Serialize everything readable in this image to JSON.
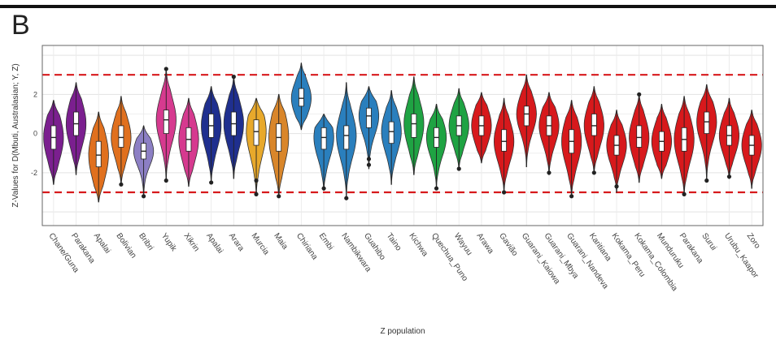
{
  "panel_label": "B",
  "chart_data": {
    "type": "violin",
    "xlabel": "Z population",
    "ylabel": "Z-Values for D(Mbuti, Australasian; Y, Z)",
    "ylim": [
      -4.7,
      4.5
    ],
    "yticks": [
      -2,
      0,
      2
    ],
    "threshold_lines": [
      3,
      -3
    ],
    "threshold_color": "#d7191c",
    "grid": true,
    "series": [
      {
        "category": "Chane/Guna",
        "color": "#7b1f8f",
        "min": -2.6,
        "max": 1.7,
        "q1": -0.8,
        "median": -0.2,
        "q3": 0.4,
        "outliers": []
      },
      {
        "category": "Parakana",
        "color": "#7b1f8f",
        "min": -2.1,
        "max": 2.6,
        "q1": -0.1,
        "median": 0.5,
        "q3": 1.1,
        "outliers": []
      },
      {
        "category": "Apalai",
        "color": "#e0701e",
        "min": -3.5,
        "max": 1.1,
        "q1": -1.7,
        "median": -1.1,
        "q3": -0.4,
        "outliers": []
      },
      {
        "category": "Bolivian",
        "color": "#e0701e",
        "min": -2.6,
        "max": 1.9,
        "q1": -0.7,
        "median": -0.2,
        "q3": 0.4,
        "outliers": [
          -2.6
        ]
      },
      {
        "category": "Bribri",
        "color": "#8c7fc4",
        "min": -3.2,
        "max": 0.4,
        "q1": -1.3,
        "median": -0.9,
        "q3": -0.5,
        "outliers": [
          -3.2
        ]
      },
      {
        "category": "Yupik",
        "color": "#d63a8f",
        "min": -2.4,
        "max": 3.3,
        "q1": 0.0,
        "median": 0.7,
        "q3": 1.2,
        "outliers": [
          3.3,
          -2.4
        ]
      },
      {
        "category": "Xikrin",
        "color": "#d63a8f",
        "min": -2.7,
        "max": 1.8,
        "q1": -0.9,
        "median": -0.3,
        "q3": 0.3,
        "outliers": []
      },
      {
        "category": "Apalai",
        "color": "#1f2f8f",
        "min": -2.5,
        "max": 2.4,
        "q1": -0.2,
        "median": 0.4,
        "q3": 1.0,
        "outliers": [
          -2.5
        ]
      },
      {
        "category": "Arara",
        "color": "#1f2f8f",
        "min": -2.3,
        "max": 2.9,
        "q1": -0.1,
        "median": 0.5,
        "q3": 1.1,
        "outliers": [
          2.9
        ]
      },
      {
        "category": "Murcia",
        "color": "#e8a92b",
        "min": -3.1,
        "max": 1.8,
        "q1": -0.6,
        "median": 0.1,
        "q3": 0.7,
        "outliers": [
          -3.1,
          -2.4
        ]
      },
      {
        "category": "Maia",
        "color": "#d9862a",
        "min": -3.2,
        "max": 2.0,
        "q1": -0.9,
        "median": -0.2,
        "q3": 0.5,
        "outliers": [
          -3.2
        ]
      },
      {
        "category": "Chiriana",
        "color": "#2a7fbd",
        "min": 0.2,
        "max": 3.6,
        "q1": 1.4,
        "median": 1.8,
        "q3": 2.3,
        "outliers": []
      },
      {
        "category": "Embi",
        "color": "#2a7fbd",
        "min": -2.9,
        "max": 1.0,
        "q1": -0.8,
        "median": -0.2,
        "q3": 0.3,
        "outliers": [
          -2.8
        ]
      },
      {
        "category": "Nambikwara",
        "color": "#2a7fbd",
        "min": -3.3,
        "max": 2.6,
        "q1": -0.8,
        "median": -0.1,
        "q3": 0.4,
        "outliers": [
          -3.3
        ]
      },
      {
        "category": "Guahibo",
        "color": "#2a7fbd",
        "min": -1.8,
        "max": 2.4,
        "q1": 0.3,
        "median": 0.9,
        "q3": 1.3,
        "outliers": [
          -1.3,
          -1.6
        ]
      },
      {
        "category": "Taino",
        "color": "#2a7fbd",
        "min": -2.6,
        "max": 2.2,
        "q1": -0.5,
        "median": 0.1,
        "q3": 0.6,
        "outliers": []
      },
      {
        "category": "Kichwa",
        "color": "#1fa343",
        "min": -2.1,
        "max": 2.9,
        "q1": -0.2,
        "median": 0.5,
        "q3": 1.0,
        "outliers": []
      },
      {
        "category": "Quechua_Puno",
        "color": "#1fa343",
        "min": -2.8,
        "max": 1.5,
        "q1": -0.7,
        "median": -0.2,
        "q3": 0.3,
        "outliers": [
          -2.8
        ]
      },
      {
        "category": "Wayuu",
        "color": "#1fa343",
        "min": -1.8,
        "max": 2.3,
        "q1": -0.1,
        "median": 0.4,
        "q3": 0.9,
        "outliers": [
          -1.8
        ]
      },
      {
        "category": "Arawa",
        "color": "#d7191c",
        "min": -1.5,
        "max": 2.1,
        "q1": -0.1,
        "median": 0.4,
        "q3": 0.9,
        "outliers": []
      },
      {
        "category": "Gavião",
        "color": "#d7191c",
        "min": -3.0,
        "max": 1.8,
        "q1": -0.9,
        "median": -0.4,
        "q3": 0.2,
        "outliers": [
          -3.0
        ]
      },
      {
        "category": "Guarani_Kaiowa",
        "color": "#d7191c",
        "min": -1.7,
        "max": 3.0,
        "q1": 0.4,
        "median": 1.0,
        "q3": 1.4,
        "outliers": []
      },
      {
        "category": "Guarani_Mbya",
        "color": "#d7191c",
        "min": -2.1,
        "max": 2.1,
        "q1": -0.1,
        "median": 0.4,
        "q3": 0.9,
        "outliers": [
          -2.0
        ]
      },
      {
        "category": "Guarani_Nandeva",
        "color": "#d7191c",
        "min": -3.2,
        "max": 1.7,
        "q1": -1.0,
        "median": -0.4,
        "q3": 0.2,
        "outliers": [
          -3.2
        ]
      },
      {
        "category": "Karitiana",
        "color": "#d7191c",
        "min": -2.0,
        "max": 2.4,
        "q1": -0.1,
        "median": 0.4,
        "q3": 1.0,
        "outliers": [
          -2.0
        ]
      },
      {
        "category": "Kokama_Peru",
        "color": "#d7191c",
        "min": -3.0,
        "max": 1.2,
        "q1": -1.1,
        "median": -0.6,
        "q3": -0.1,
        "outliers": [
          -2.7
        ]
      },
      {
        "category": "Kokama_Colombia",
        "color": "#d7191c",
        "min": -2.5,
        "max": 2.0,
        "q1": -0.7,
        "median": -0.2,
        "q3": 0.4,
        "outliers": [
          2.0
        ]
      },
      {
        "category": "Munduruku",
        "color": "#d7191c",
        "min": -2.3,
        "max": 1.5,
        "q1": -0.9,
        "median": -0.4,
        "q3": 0.1,
        "outliers": []
      },
      {
        "category": "Parakana",
        "color": "#d7191c",
        "min": -3.1,
        "max": 1.9,
        "q1": -0.9,
        "median": -0.3,
        "q3": 0.3,
        "outliers": [
          -3.1
        ]
      },
      {
        "category": "Surui",
        "color": "#d7191c",
        "min": -2.4,
        "max": 2.5,
        "q1": 0.0,
        "median": 0.6,
        "q3": 1.1,
        "outliers": [
          -2.4
        ]
      },
      {
        "category": "Urubu_Kaapor",
        "color": "#d7191c",
        "min": -2.3,
        "max": 1.8,
        "q1": -0.6,
        "median": -0.1,
        "q3": 0.4,
        "outliers": [
          -2.2
        ]
      },
      {
        "category": "Zoro",
        "color": "#d7191c",
        "min": -2.8,
        "max": 1.2,
        "q1": -1.1,
        "median": -0.6,
        "q3": -0.1,
        "outliers": []
      }
    ]
  }
}
